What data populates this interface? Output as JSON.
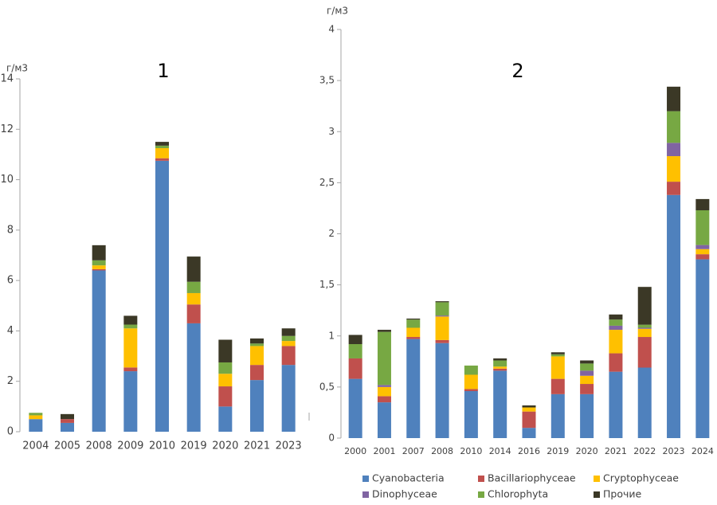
{
  "chart_data": [
    {
      "type": "bar",
      "stacked": true,
      "title": "1",
      "y_label": "г/м3",
      "categories": [
        "2004",
        "2005",
        "2008",
        "2009",
        "2010",
        "2019",
        "2020",
        "2021",
        "2023"
      ],
      "series": [
        {
          "color": "#4f81bd",
          "values": [
            0.5,
            0.35,
            6.4,
            2.4,
            10.75,
            4.3,
            1.0,
            2.05,
            2.65
          ]
        },
        {
          "color": "#c0504d",
          "values": [
            0,
            0.15,
            0.05,
            0.15,
            0.1,
            0.75,
            0.8,
            0.6,
            0.75
          ]
        },
        {
          "color": "#ffc000",
          "values": [
            0.15,
            0,
            0.15,
            1.55,
            0.4,
            0.45,
            0.5,
            0.75,
            0.2
          ]
        },
        {
          "color": "#8064a2",
          "values": [
            0,
            0,
            0,
            0,
            0,
            0,
            0,
            0,
            0
          ]
        },
        {
          "color": "#77a843",
          "values": [
            0.1,
            0,
            0.2,
            0.15,
            0.1,
            0.45,
            0.45,
            0.1,
            0.2
          ]
        },
        {
          "color": "#3b3826",
          "values": [
            0,
            0.2,
            0.6,
            0.35,
            0.15,
            1.0,
            0.9,
            0.2,
            0.3
          ]
        }
      ],
      "ylim": [
        0,
        14
      ],
      "yticks": [
        0,
        2,
        4,
        6,
        8,
        10,
        12,
        14
      ],
      "grid": false
    },
    {
      "type": "bar",
      "stacked": true,
      "title": "2",
      "y_label": "г/м3",
      "legend": "bottom",
      "categories": [
        "2000",
        "2001",
        "2007",
        "2008",
        "2010",
        "2014",
        "2016",
        "2019",
        "2020",
        "2021",
        "2022",
        "2023",
        "2024"
      ],
      "series": [
        {
          "name": "Cyanobacteria",
          "color": "#4f81bd",
          "values": [
            0.58,
            0.35,
            0.97,
            0.93,
            0.46,
            0.66,
            0.1,
            0.43,
            0.43,
            0.65,
            0.69,
            2.38,
            1.75
          ]
        },
        {
          "name": "Bacillariophyceae",
          "color": "#c0504d",
          "values": [
            0.2,
            0.06,
            0.02,
            0.03,
            0.02,
            0.02,
            0.16,
            0.15,
            0.1,
            0.18,
            0.3,
            0.13,
            0.05
          ]
        },
        {
          "name": "Cryptophyceae",
          "color": "#ffc000",
          "values": [
            0,
            0.09,
            0.09,
            0.23,
            0.14,
            0.02,
            0.04,
            0.22,
            0.08,
            0.23,
            0.08,
            0.25,
            0.05
          ]
        },
        {
          "name": "Dinophyceae",
          "color": "#8064a2",
          "values": [
            0,
            0.02,
            0,
            0.01,
            0,
            0,
            0,
            0,
            0.05,
            0.04,
            0.01,
            0.13,
            0.04
          ]
        },
        {
          "name": "Chlorophyta",
          "color": "#77a843",
          "values": [
            0.14,
            0.52,
            0.08,
            0.13,
            0.09,
            0.06,
            0,
            0.02,
            0.07,
            0.06,
            0.03,
            0.31,
            0.34
          ]
        },
        {
          "name": "Прочие",
          "color": "#3b3826",
          "values": [
            0.09,
            0.02,
            0.01,
            0.01,
            0,
            0.02,
            0.02,
            0.02,
            0.03,
            0.05,
            0.37,
            0.24,
            0.11
          ]
        }
      ],
      "ylim": [
        0,
        4
      ],
      "yticks": [
        0,
        {
          "value": 0.5,
          "label": "0,5"
        },
        1,
        {
          "value": 1.5,
          "label": "1,5"
        },
        2,
        {
          "value": 2.5,
          "label": "2,5"
        },
        3,
        {
          "value": 3.5,
          "label": "3,5"
        },
        4
      ],
      "grid": false
    }
  ]
}
